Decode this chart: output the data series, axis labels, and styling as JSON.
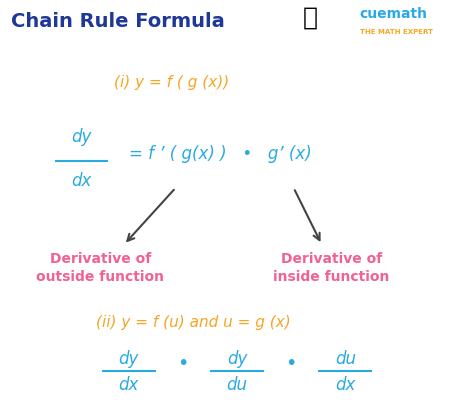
{
  "title": "Chain Rule Formula",
  "title_color": "#1e3799",
  "title_fontsize": 14,
  "bg_color": "#ffffff",
  "formula1_label": "(i) y = f ( g (x))",
  "formula1_color": "#f5a623",
  "formula1_fontsize": 11,
  "frac1_num": "dy",
  "frac1_den": "dx",
  "frac1_color": "#29abe2",
  "equals_text": "= f ’ ( g(x) )   •   g’ (x)",
  "equals_color": "#29abe2",
  "label_left": "Derivative of\noutside function",
  "label_right": "Derivative of\ninside function",
  "label_color": "#f06292",
  "formula2_label": "(ii) y = f (u) and u = g (x)",
  "formula2_color": "#f5a623",
  "formula2_fontsize": 11,
  "frac2a_num": "dy",
  "frac2a_den": "dx",
  "frac2b_num": "dy",
  "frac2b_den": "du",
  "frac2c_num": "du",
  "frac2c_den": "dx",
  "frac2_color": "#29abe2",
  "dot_color": "#29abe2",
  "arrow_color": "#444444",
  "cuemath_blue": "#29abe2",
  "cuemath_orange": "#f5a623",
  "logo_text": "cuemath",
  "logo_sub": "THE MATH EXPERT"
}
